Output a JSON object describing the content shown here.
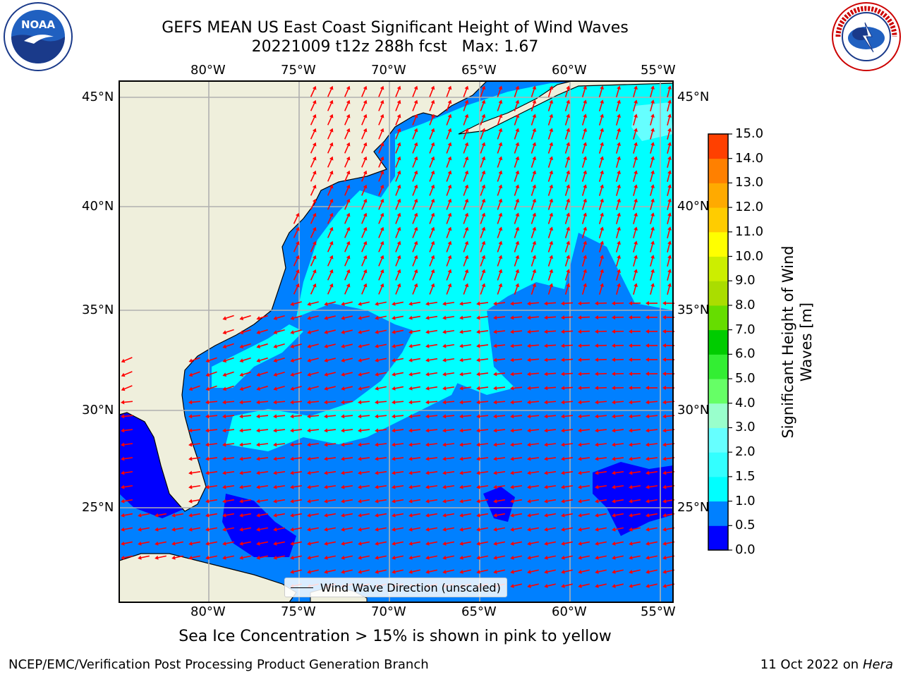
{
  "header": {
    "title_line1": "GEFS MEAN US East Coast Significant Height of Wind Waves",
    "title_line2": "20221009 t12z 288h fcst   Max: 1.67"
  },
  "logos": {
    "left_text": "NOAA",
    "left_ring_text": "NATIONAL OCEANIC AND ATMOSPHERIC ADMINISTRATION · U.S. DEPARTMENT OF COMMERCE",
    "right_ring_text": "NATIONAL WEATHER SERVICE"
  },
  "map": {
    "lon_labels": [
      "80°W",
      "75°W",
      "70°W",
      "65°W",
      "60°W",
      "55°W"
    ],
    "lat_labels": [
      "45°N",
      "40°N",
      "35°N",
      "30°N",
      "25°N"
    ],
    "legend_label": "Wind Wave Direction (unscaled)",
    "colors": {
      "land": "#efefdc",
      "arrows": "#ff0000",
      "grid": "#b0b0b0"
    }
  },
  "colorbar": {
    "title": "Significant Height of Wind Waves [m]",
    "ticks": [
      "0.0",
      "0.5",
      "1.0",
      "1.5",
      "2.0",
      "3.0",
      "4.0",
      "5.0",
      "6.0",
      "7.0",
      "8.0",
      "9.0",
      "10.0",
      "11.0",
      "12.0",
      "13.0",
      "14.0",
      "15.0"
    ],
    "colors": [
      "#0000ff",
      "#0080ff",
      "#00ffff",
      "#33ffff",
      "#66ffff",
      "#99ffcc",
      "#66ff66",
      "#33ee33",
      "#00cc00",
      "#66dd00",
      "#aadd00",
      "#ccee00",
      "#ffff00",
      "#ffcc00",
      "#ffaa00",
      "#ff8000",
      "#ff4000",
      "#ff0000"
    ]
  },
  "footer": {
    "note": "Sea Ice Concentration > 15% is shown in pink to yellow",
    "left": "NCEP/EMC/Verification Post Processing Product Generation Branch",
    "right_date": "11 Oct 2022 on",
    "right_machine": "Hera"
  }
}
